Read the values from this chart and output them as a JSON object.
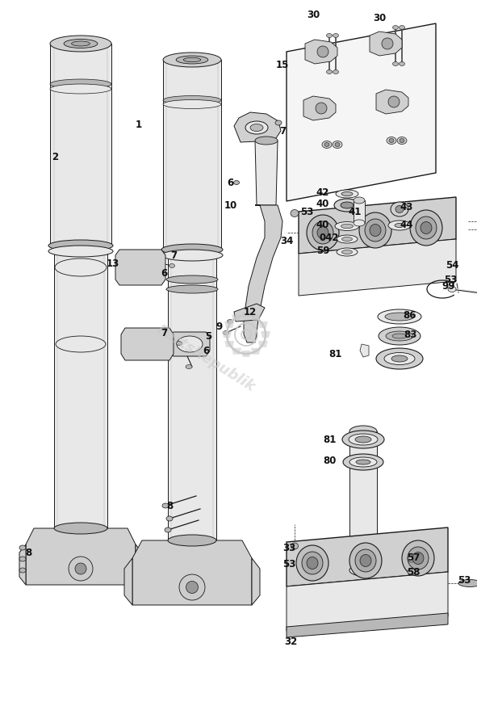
{
  "bg_color": "#ffffff",
  "lc": "#1a1a1a",
  "gray1": "#d0d0d0",
  "gray2": "#e8e8e8",
  "gray3": "#b8b8b8",
  "figsize": [
    5.91,
    8.74
  ],
  "dpi": 100,
  "xlim": [
    0,
    591
  ],
  "ylim": [
    0,
    874
  ]
}
